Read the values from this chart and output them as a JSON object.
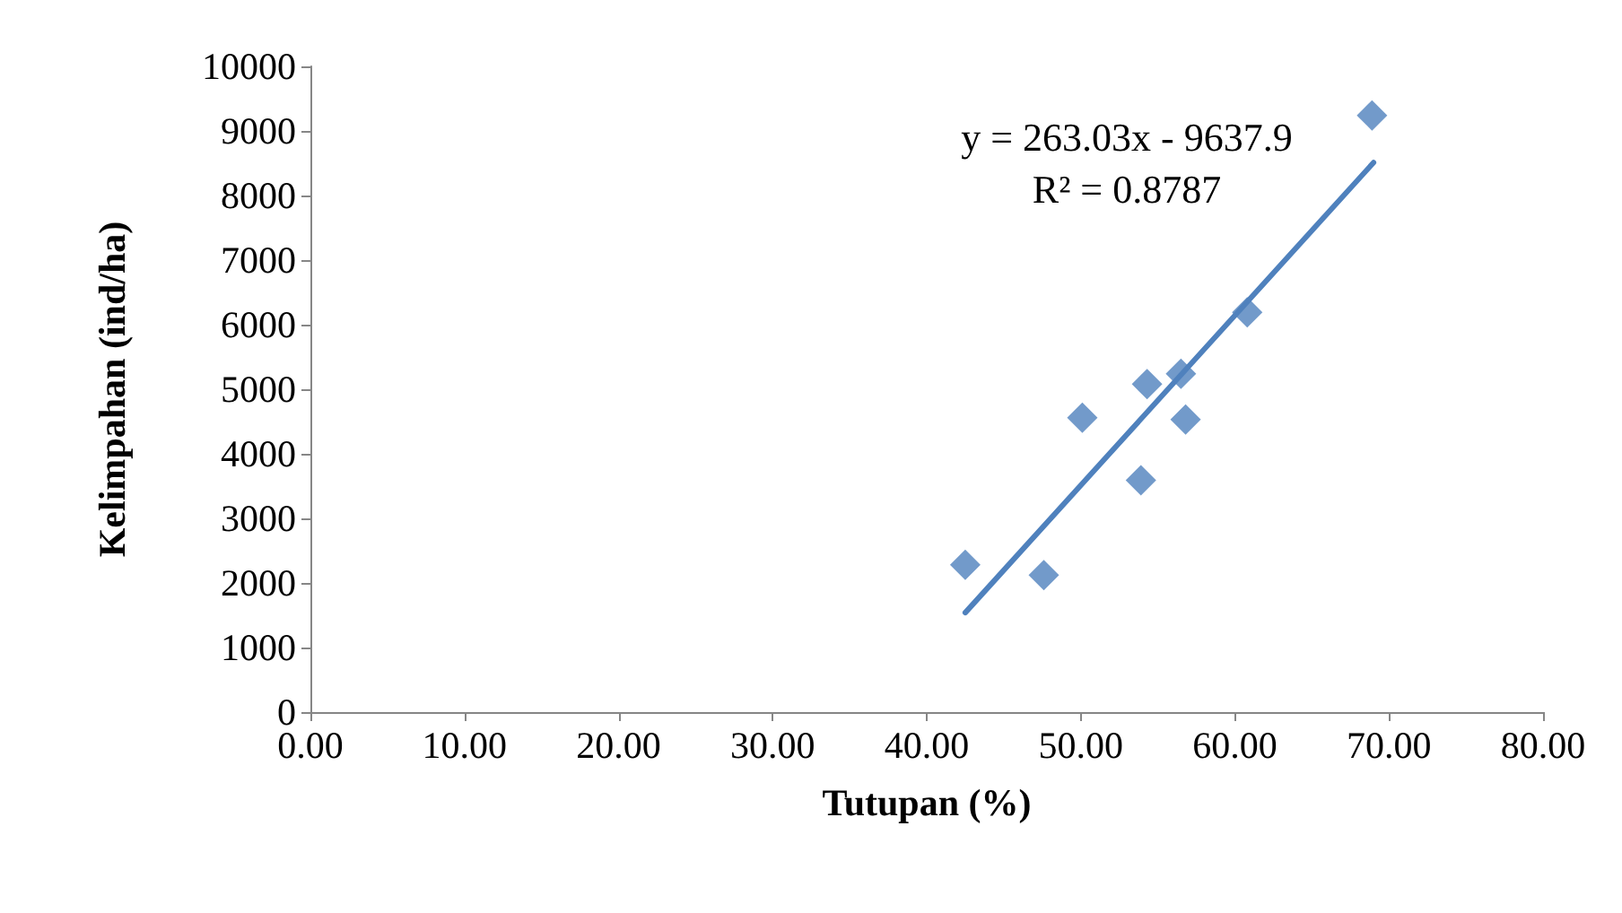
{
  "chart_data": {
    "type": "scatter",
    "xlabel": "Tutupan (%)",
    "ylabel": "Kelimpahan (ind/ha)",
    "xlim": [
      0,
      80
    ],
    "xticks": [
      {
        "value": 0,
        "label": "0.00"
      },
      {
        "value": 10,
        "label": "10.00"
      },
      {
        "value": 20,
        "label": "20.00"
      },
      {
        "value": 30,
        "label": "30.00"
      },
      {
        "value": 40,
        "label": "40.00"
      },
      {
        "value": 50,
        "label": "50.00"
      },
      {
        "value": 60,
        "label": "60.00"
      },
      {
        "value": 70,
        "label": "70.00"
      },
      {
        "value": 80,
        "label": "80.00"
      }
    ],
    "ylim": [
      0,
      10000
    ],
    "yticks": [
      0,
      1000,
      2000,
      3000,
      4000,
      5000,
      6000,
      7000,
      8000,
      9000,
      10000
    ],
    "grid": false,
    "marker": "diamond",
    "annotations": [
      "y = 263.03x - 9637.9\nR² = 0.8787"
    ],
    "series": [
      {
        "color": "#4f81bd",
        "x": [
          42.5,
          47.6,
          50.1,
          53.9,
          54.3,
          56.5,
          56.8,
          60.8,
          68.9
        ],
        "values": [
          2280,
          2120,
          4560,
          3590,
          5080,
          5240,
          4530,
          6190,
          9240
        ]
      },
      {
        "type": "line",
        "color": "#4f81bd",
        "x": [
          42.5,
          69.0
        ],
        "values": [
          1540,
          8510
        ],
        "marker": "none",
        "line_style": "solid"
      }
    ]
  }
}
